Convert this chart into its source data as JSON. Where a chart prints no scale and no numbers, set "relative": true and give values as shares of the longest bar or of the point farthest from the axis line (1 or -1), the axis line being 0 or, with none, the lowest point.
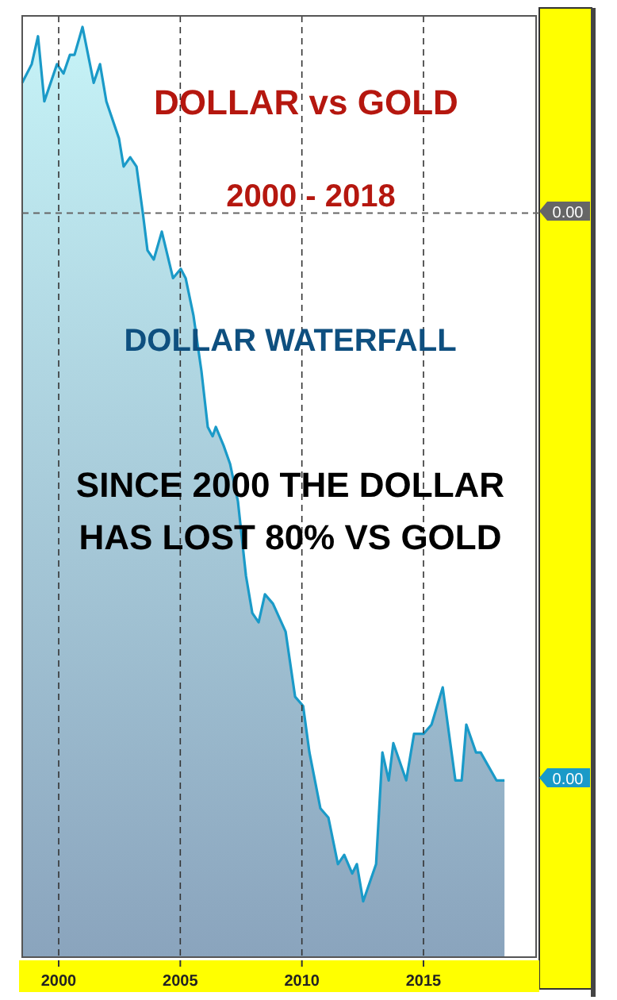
{
  "chart_data": {
    "type": "area",
    "title": "DOLLAR  vs  GOLD",
    "subtitle": "2000 - 2018",
    "relative": true,
    "annotations": [
      "DOLLAR WATERFALL",
      "SINCE 2000 THE DOLLAR\nHAS LOST  80% VS GOLD",
      "0.00",
      "0.00"
    ],
    "xlim": [
      1998.5,
      2019.63
    ],
    "xticks": [
      2000,
      2005,
      2010,
      2015
    ],
    "grid": "x",
    "ref_lines": [
      {
        "axis": "y",
        "value": 0.8,
        "line_style": "dashed",
        "color": "#666666"
      }
    ],
    "series": [
      {
        "color": "#1a9ac8",
        "x": [
          1998.5,
          1998.89,
          1999.15,
          1999.41,
          1999.93,
          2000.2,
          2000.46,
          2000.65,
          2000.98,
          2001.44,
          2001.7,
          2001.96,
          2002.48,
          2002.67,
          2002.94,
          2003.2,
          2003.46,
          2003.65,
          2003.91,
          2004.24,
          2004.7,
          2005.02,
          2005.22,
          2005.54,
          2005.87,
          2006.13,
          2006.33,
          2006.46,
          2006.78,
          2007.05,
          2007.37,
          2007.7,
          2007.96,
          2008.22,
          2008.48,
          2008.81,
          2009.33,
          2009.72,
          2010.05,
          2010.31,
          2010.76,
          2011.09,
          2011.48,
          2011.74,
          2012.07,
          2012.26,
          2012.52,
          2013.05,
          2013.31,
          2013.57,
          2013.76,
          2014.29,
          2014.61,
          2015.0,
          2015.33,
          2015.79,
          2016.31,
          2016.57,
          2016.76,
          2017.16,
          2017.35,
          2018.0,
          2018.33
        ],
        "values": [
          0.94,
          0.96,
          0.99,
          0.92,
          0.96,
          0.95,
          0.97,
          0.97,
          1.0,
          0.94,
          0.96,
          0.92,
          0.88,
          0.85,
          0.86,
          0.85,
          0.8,
          0.76,
          0.75,
          0.78,
          0.73,
          0.74,
          0.73,
          0.69,
          0.63,
          0.57,
          0.56,
          0.57,
          0.55,
          0.53,
          0.49,
          0.41,
          0.37,
          0.36,
          0.39,
          0.38,
          0.35,
          0.28,
          0.27,
          0.22,
          0.16,
          0.15,
          0.1,
          0.11,
          0.09,
          0.1,
          0.06,
          0.1,
          0.22,
          0.19,
          0.23,
          0.19,
          0.24,
          0.24,
          0.25,
          0.29,
          0.19,
          0.19,
          0.25,
          0.22,
          0.22,
          0.19,
          0.19
        ]
      }
    ]
  }
}
